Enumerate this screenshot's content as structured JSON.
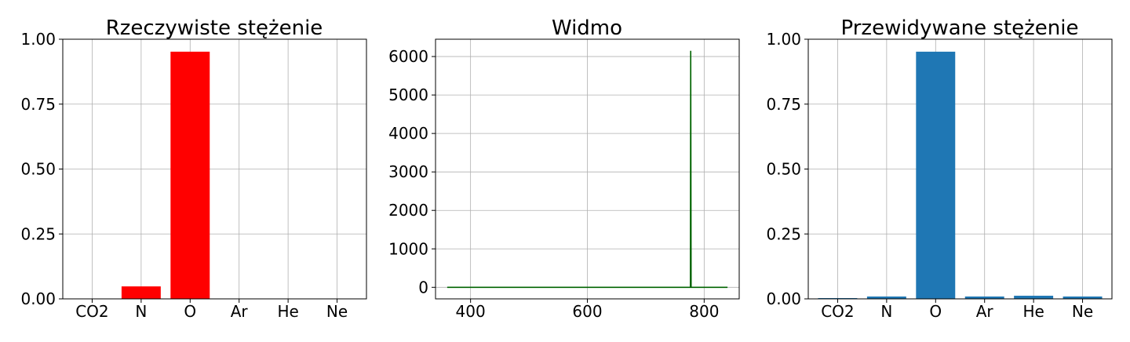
{
  "chart_data": [
    {
      "type": "bar",
      "title": "Rzeczywiste stężenie",
      "categories": [
        "CO2",
        "N",
        "O",
        "Ar",
        "He",
        "Ne"
      ],
      "values": [
        0.0,
        0.048,
        0.952,
        0.0,
        0.0,
        0.0
      ],
      "ylim": [
        0,
        1
      ],
      "yticks": [
        "0.00",
        "0.25",
        "0.50",
        "0.75",
        "1.00"
      ],
      "xlabel": "",
      "ylabel": "",
      "grid": true,
      "color": "#ff0000"
    },
    {
      "type": "line",
      "title": "Widmo",
      "xlim": [
        340,
        860
      ],
      "ylim": [
        -300,
        6450
      ],
      "xticks": [
        "400",
        "600",
        "800"
      ],
      "yticks": [
        "0",
        "1000",
        "2000",
        "3000",
        "4000",
        "5000",
        "6000"
      ],
      "x": [
        360,
        776.4,
        777.0,
        777.6,
        840
      ],
      "y": [
        0,
        0,
        6150,
        0,
        0
      ],
      "xlabel": "",
      "ylabel": "",
      "grid": true,
      "color": "#006400"
    },
    {
      "type": "bar",
      "title": "Przewidywane stężenie",
      "categories": [
        "CO2",
        "N",
        "O",
        "Ar",
        "He",
        "Ne"
      ],
      "values": [
        0.003,
        0.009,
        0.952,
        0.009,
        0.012,
        0.009
      ],
      "ylim": [
        0,
        1
      ],
      "yticks": [
        "0.00",
        "0.25",
        "0.50",
        "0.75",
        "1.00"
      ],
      "xlabel": "",
      "ylabel": "",
      "grid": true,
      "color": "#1f77b4"
    }
  ]
}
